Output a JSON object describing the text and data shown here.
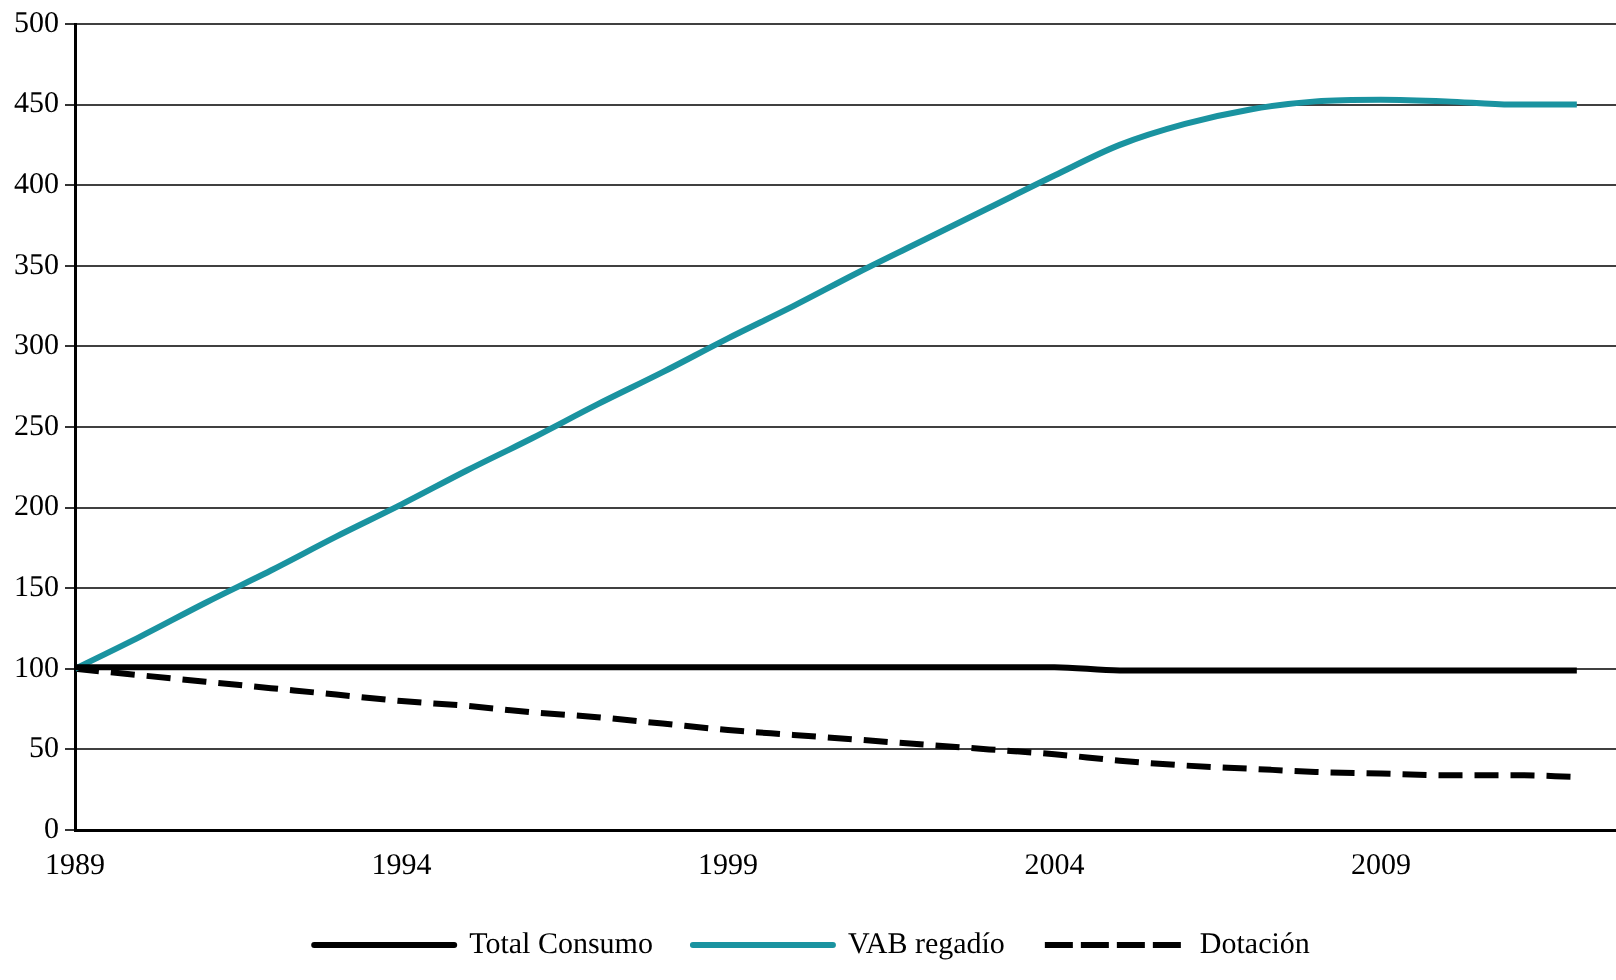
{
  "chart_data": {
    "type": "line",
    "x": [
      1989,
      1990,
      1991,
      1992,
      1993,
      1994,
      1995,
      1996,
      1997,
      1998,
      1999,
      2000,
      2001,
      2002,
      2003,
      2004,
      2005,
      2006,
      2007,
      2008,
      2009,
      2010,
      2011,
      2012
    ],
    "series": [
      {
        "name": "Total Consumo",
        "color": "#000000",
        "line_style": "solid",
        "values": [
          101,
          101,
          101,
          101,
          101,
          101,
          101,
          101,
          101,
          101,
          101,
          101,
          101,
          101,
          101,
          101,
          99,
          99,
          99,
          99,
          99,
          99,
          99,
          99
        ]
      },
      {
        "name": "VAB regadío",
        "color": "#1a93a0",
        "line_style": "solid",
        "values": [
          100,
          120,
          141,
          161,
          182,
          202,
          223,
          243,
          264,
          284,
          305,
          325,
          346,
          366,
          386,
          406,
          425,
          438,
          447,
          452,
          453,
          452,
          450,
          450
        ]
      },
      {
        "name": "Dotación",
        "color": "#000000",
        "line_style": "dashed",
        "values": [
          100,
          96,
          92,
          88,
          84,
          80,
          77,
          73,
          70,
          66,
          62,
          59,
          56,
          53,
          50,
          47,
          43,
          40,
          38,
          36,
          35,
          34,
          34,
          33
        ]
      }
    ],
    "xlim": [
      1989,
      2012.6
    ],
    "xticks": [
      1989,
      1994,
      1999,
      2004,
      2009
    ],
    "ylim": [
      0,
      500
    ],
    "yticks": [
      0,
      50,
      100,
      150,
      200,
      250,
      300,
      350,
      400,
      450,
      500
    ],
    "grid": "y",
    "legend": "bottom",
    "marker": "none"
  }
}
